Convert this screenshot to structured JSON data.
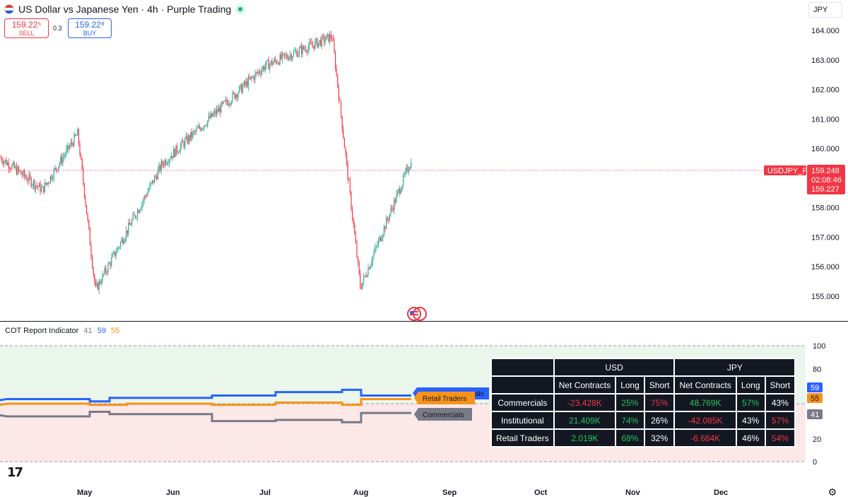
{
  "header": {
    "title": "US Dollar vs Japanese Yen · 4h · Purple Trading",
    "sell_price": "159.22⁵",
    "sell_label": "SELL",
    "buy_price": "159.22⁸",
    "buy_label": "BUY",
    "spread": "0.3",
    "currency": "JPY"
  },
  "price_axis": {
    "ticks": [
      "164.000",
      "163.000",
      "162.000",
      "161.000",
      "160.000",
      "158.000",
      "157.000",
      "156.000",
      "155.000"
    ],
    "symbol_tag": "USDJPY_P",
    "last_price": "159.248",
    "countdown": "02:08:46",
    "bid_price": "159.227",
    "colors": {
      "up": "#22ab94",
      "down": "#f23645",
      "tag": "#f23645"
    }
  },
  "time_axis": {
    "labels": [
      "May",
      "Jun",
      "Jul",
      "Aug",
      "Sep",
      "Oct",
      "Nov",
      "Dec"
    ]
  },
  "indicator": {
    "name": "COT Report Indicator",
    "value_1": "41",
    "value_2": "59",
    "value_3": "55",
    "axis_ticks": [
      "100",
      "80",
      "20",
      "0"
    ],
    "tag_institutional": "59",
    "tag_retail": "55",
    "tag_commercials": "41",
    "line_label_retail": "Retail Traders",
    "line_label_commercials": "Commercials",
    "line_label_institutional_partial": "als",
    "colors": {
      "institutional": "#2962ff",
      "retail": "#f7931a",
      "commercials": "#787b86"
    }
  },
  "cot_table": {
    "groups": [
      "USD",
      "JPY"
    ],
    "headers": [
      "Net Contracts",
      "Long",
      "Short",
      "Net Contracts",
      "Long",
      "Short"
    ],
    "rows": [
      {
        "name": "Commercials",
        "cells": [
          "-23.428K",
          "25%",
          "75%",
          "48.769K",
          "57%",
          "43%"
        ]
      },
      {
        "name": "Institutional",
        "cells": [
          "21.409K",
          "74%",
          "26%",
          "-42.085K",
          "43%",
          "57%"
        ]
      },
      {
        "name": "Retail Traders",
        "cells": [
          "2.019K",
          "68%",
          "32%",
          "-6.684K",
          "46%",
          "54%"
        ]
      }
    ]
  },
  "chart_data": [
    {
      "type": "candlestick",
      "title": "US Dollar vs Japanese Yen · 4h · Purple Trading",
      "ylim": [
        155.0,
        164.0
      ],
      "last_price": 159.248,
      "key_points": [
        {
          "x": "Apr",
          "y": 159.7
        },
        {
          "x": "mid-Apr",
          "y": 158.6
        },
        {
          "x": "end-Apr",
          "y": 160.5
        },
        {
          "x": "early-May",
          "y": 155.2
        },
        {
          "x": "Jun",
          "y": 159.5
        },
        {
          "x": "mid-Jul",
          "y": 162.8
        },
        {
          "x": "end-Jul",
          "y": 163.8
        },
        {
          "x": "early-Aug",
          "y": 155.3
        },
        {
          "x": "mid-Aug",
          "y": 159.5
        }
      ]
    },
    {
      "type": "line",
      "title": "COT Report Indicator",
      "ylim": [
        0,
        100
      ],
      "series": [
        {
          "name": "Institutional",
          "last": 59
        },
        {
          "name": "Retail Traders",
          "last": 55
        },
        {
          "name": "Commercials",
          "last": 41
        }
      ]
    }
  ]
}
